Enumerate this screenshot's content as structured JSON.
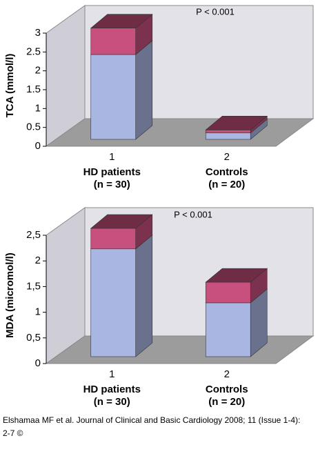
{
  "chart_data": [
    {
      "type": "bar",
      "stacked": true,
      "y_label": "TCA (mmol/l)",
      "annotation": "P < 0.001",
      "categories": [
        "1",
        "2"
      ],
      "group_labels": [
        [
          "HD patients",
          "(n = 30)"
        ],
        [
          "Controls",
          "(n = 20)"
        ]
      ],
      "series": [
        {
          "color": "#a9b6e2",
          "values": [
            2.25,
            0.17
          ]
        },
        {
          "color": "#c8507e",
          "values": [
            0.7,
            0.08
          ]
        }
      ],
      "ylim": [
        0,
        3
      ],
      "yticks": [
        0,
        0.5,
        1,
        1.5,
        2,
        2.5,
        3
      ]
    },
    {
      "type": "bar",
      "stacked": true,
      "y_label": "MDA (micromol/l)",
      "annotation": "P < 0.001",
      "categories": [
        "1",
        "2"
      ],
      "group_labels": [
        [
          "HD patients",
          "(n = 30)"
        ],
        [
          "Controls",
          "(n = 20)"
        ]
      ],
      "series": [
        {
          "color": "#a9b6e2",
          "values": [
            2.1,
            1.05
          ]
        },
        {
          "color": "#c8507e",
          "values": [
            0.4,
            0.4
          ]
        }
      ],
      "ylim": [
        0,
        2.5
      ],
      "yticks": [
        0,
        {
          "value": 0.5,
          "label": "0,5"
        },
        1,
        {
          "value": 1.5,
          "label": "1,5"
        },
        2,
        {
          "value": 2.5,
          "label": "2,5"
        }
      ]
    }
  ],
  "footer": [
    "Elshamaa MF et al. Journal of Clinical and Basic Cardiology 2008; 11 (Issue 1-4):",
    "2-7 ©"
  ]
}
